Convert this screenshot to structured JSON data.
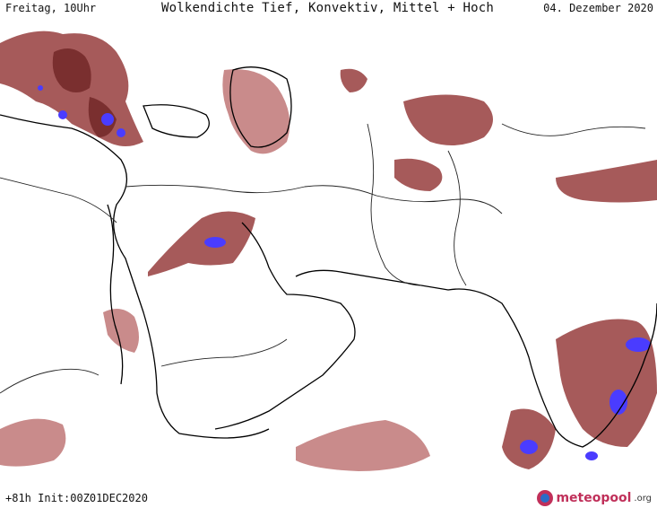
{
  "header": {
    "left": "Freitag, 10Uhr",
    "title": "Wolkendichte  Tief, Konvektiv, Mittel + Hoch",
    "right": "04. Dezember 2020"
  },
  "footer": {
    "run": "+81h Init:00Z01DEC2020",
    "logo_text": "meteopool",
    "logo_tld": ".org"
  },
  "colors": {
    "background": "#ffffff",
    "cloud_light": "#c98b8b",
    "cloud_medium": "#a65a5a",
    "cloud_dense": "#7a2f2f",
    "cloud_max": "#4a3cff",
    "coastline": "#000000",
    "border": "#222222"
  },
  "map": {
    "icons": [
      "coastline",
      "country-border",
      "cloud-cell"
    ]
  }
}
